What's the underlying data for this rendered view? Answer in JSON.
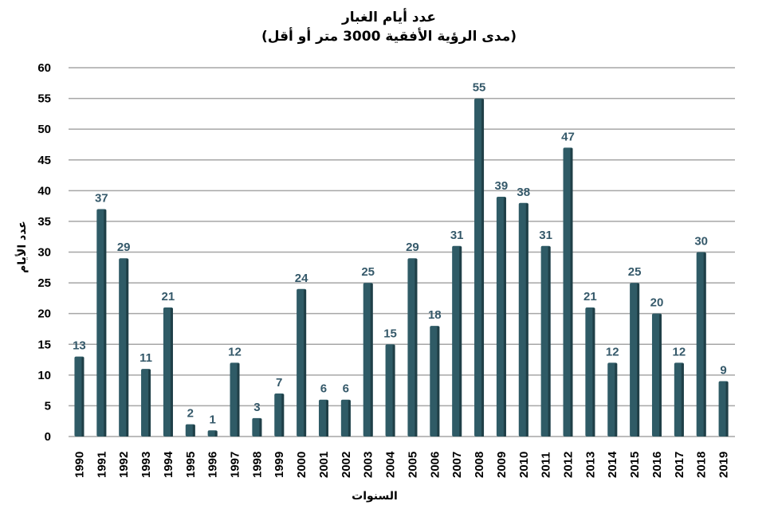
{
  "chart_data": {
    "type": "bar",
    "title": "عدد أيام الغبار",
    "subtitle": "(مدى الرؤية الأفقية 3000 متر أو أقل)",
    "xlabel": "السنوات",
    "ylabel": "عدد الأيام",
    "ylim": [
      0,
      60
    ],
    "yticks": [
      0,
      5,
      10,
      15,
      20,
      25,
      30,
      35,
      40,
      45,
      50,
      55,
      60
    ],
    "grid": true,
    "categories": [
      "1990",
      "1991",
      "1992",
      "1993",
      "1994",
      "1995",
      "1996",
      "1997",
      "1998",
      "1999",
      "2000",
      "2001",
      "2002",
      "2003",
      "2004",
      "2005",
      "2006",
      "2007",
      "2008",
      "2009",
      "2010",
      "2011",
      "2012",
      "2013",
      "2014",
      "2015",
      "2016",
      "2017",
      "2018",
      "2019"
    ],
    "values": [
      13,
      37,
      29,
      11,
      21,
      2,
      1,
      12,
      3,
      7,
      24,
      6,
      6,
      25,
      15,
      29,
      18,
      31,
      55,
      39,
      38,
      31,
      47,
      21,
      12,
      25,
      20,
      12,
      30,
      9
    ],
    "colors": {
      "bar": "#2f5b66",
      "bar_dark": "#1f3f47",
      "label": "#35596a",
      "grid": "#a6a6a6"
    }
  }
}
